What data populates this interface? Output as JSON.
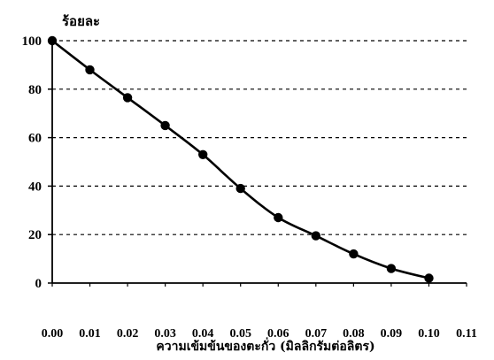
{
  "chart_data": {
    "type": "line",
    "title": "",
    "ylabel": "ร้อยละ",
    "xlabel": "ความเข้มข้นของตะกั่ว (มิลลิกรัมต่อลิตร)",
    "x": [
      0.0,
      0.01,
      0.02,
      0.03,
      0.04,
      0.05,
      0.06,
      0.07,
      0.08,
      0.09,
      0.1
    ],
    "series": [
      {
        "values": [
          100,
          88,
          76.5,
          65,
          53,
          39,
          27,
          19.5,
          12,
          6,
          2
        ]
      }
    ],
    "xlim": [
      0,
      0.11
    ],
    "ylim": [
      0,
      100
    ],
    "x_ticks": [
      "0.00",
      "0.01",
      "0.02",
      "0.03",
      "0.04",
      "0.05",
      "0.06",
      "0.07",
      "0.08",
      "0.09",
      "0.10",
      "0.11"
    ],
    "y_ticks": [
      "0",
      "20",
      "40",
      "60",
      "80",
      "100"
    ],
    "grid": "horizontal-dashed",
    "legend": "none"
  }
}
